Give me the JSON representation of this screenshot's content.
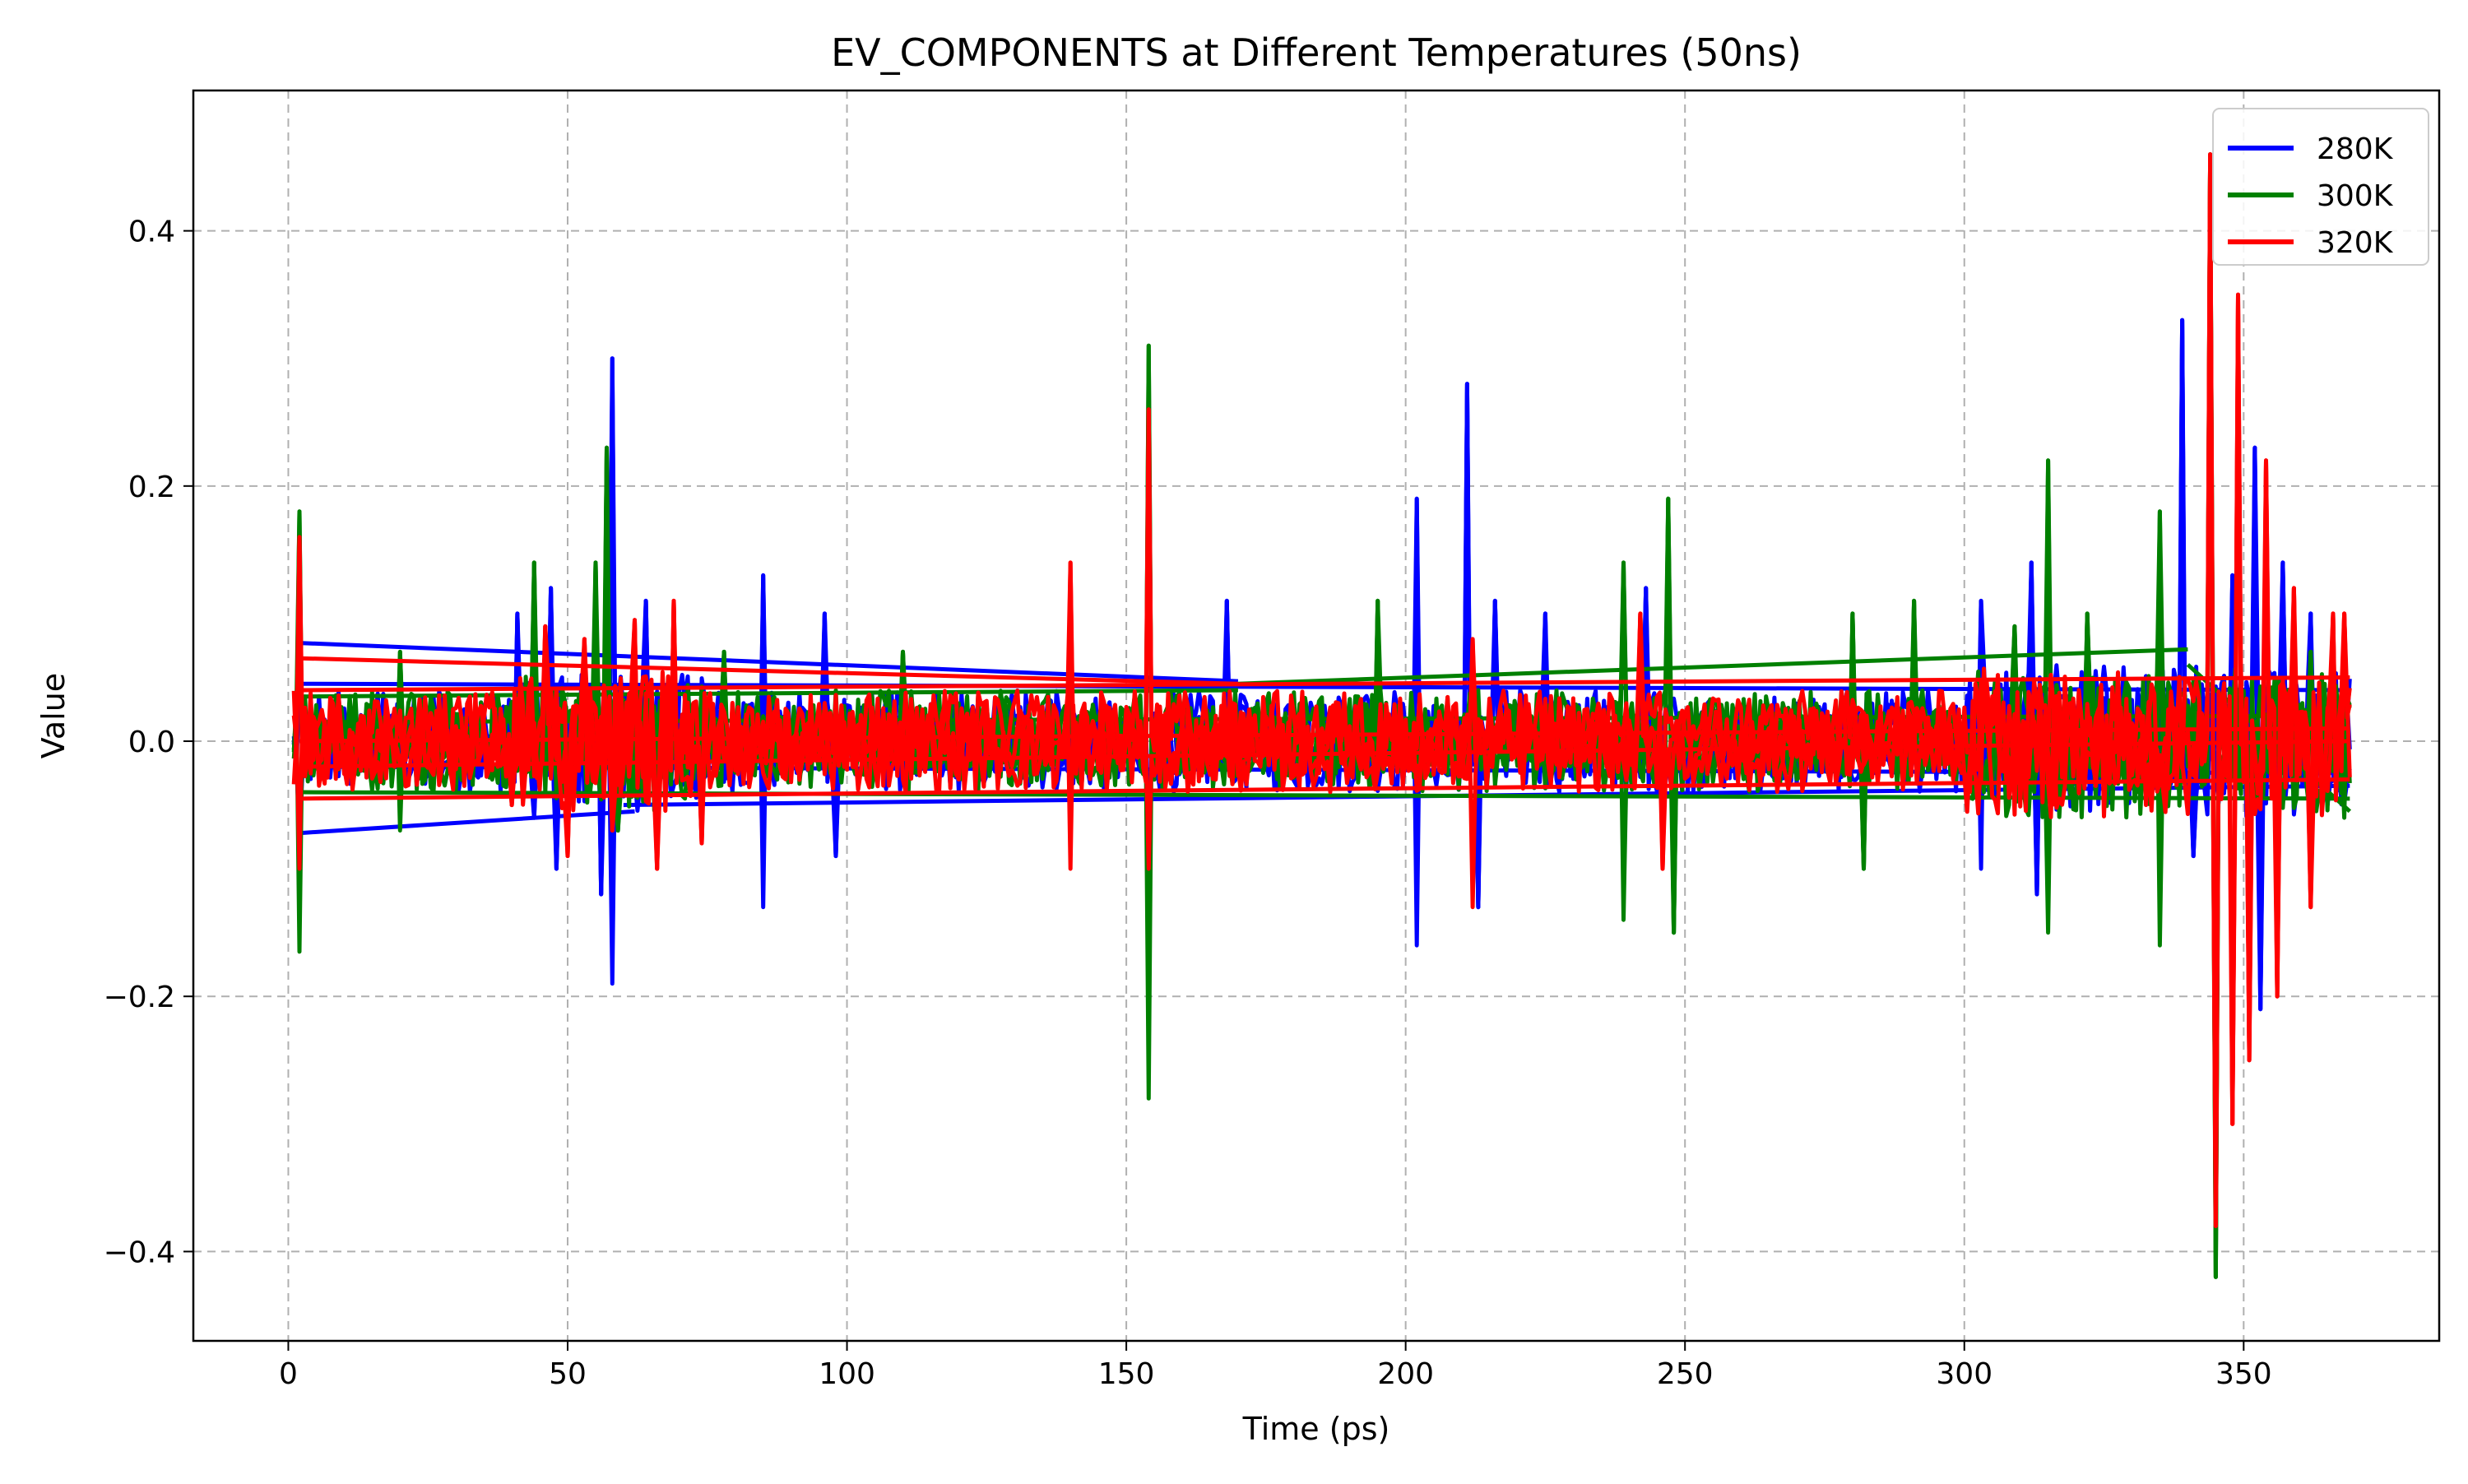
{
  "chart_data": {
    "type": "line",
    "title": "EV_COMPONENTS at Different Temperatures (50ns)",
    "xlabel": "Time (ps)",
    "ylabel": "Value",
    "xlim": [
      -17,
      385
    ],
    "ylim": [
      -0.47,
      0.51
    ],
    "xticks": [
      0,
      50,
      100,
      150,
      200,
      250,
      300,
      350
    ],
    "yticks": [
      -0.4,
      -0.2,
      0.0,
      0.2,
      0.4
    ],
    "ytick_labels": [
      "−0.4",
      "−0.2",
      "0.0",
      "0.2",
      "0.4"
    ],
    "grid": true,
    "legend_position": "top-right",
    "series": [
      {
        "name": "280K",
        "color": "#0000ff",
        "peaks": [
          [
            2,
            0.07
          ],
          [
            2,
            -0.07
          ],
          [
            41,
            0.1
          ],
          [
            44,
            -0.06
          ],
          [
            47,
            0.12
          ],
          [
            48,
            -0.1
          ],
          [
            56,
            -0.12
          ],
          [
            58,
            0.3
          ],
          [
            58,
            -0.19
          ],
          [
            64,
            0.11
          ],
          [
            85,
            0.13
          ],
          [
            85,
            -0.13
          ],
          [
            96,
            0.1
          ],
          [
            98,
            -0.09
          ],
          [
            154,
            -0.12
          ],
          [
            168,
            0.11
          ],
          [
            202,
            0.19
          ],
          [
            202,
            -0.16
          ],
          [
            211,
            0.28
          ],
          [
            213,
            -0.13
          ],
          [
            216,
            0.11
          ],
          [
            225,
            0.1
          ],
          [
            243,
            0.12
          ],
          [
            303,
            0.11
          ],
          [
            303,
            -0.1
          ],
          [
            312,
            0.14
          ],
          [
            313,
            -0.12
          ],
          [
            339,
            0.33
          ],
          [
            341,
            -0.09
          ],
          [
            348,
            0.13
          ],
          [
            352,
            0.23
          ],
          [
            353,
            -0.21
          ],
          [
            357,
            0.14
          ],
          [
            362,
            0.1
          ],
          [
            365,
            -0.05
          ]
        ],
        "bands": [
          [
            2,
            0.077,
            170,
            0.047
          ],
          [
            2,
            -0.072,
            62,
            -0.055
          ],
          [
            60,
            -0.05,
            369,
            -0.035
          ],
          [
            2,
            0.045,
            369,
            0.04
          ],
          [
            2,
            -0.02,
            369,
            -0.025
          ]
        ]
      },
      {
        "name": "300K",
        "color": "#008000",
        "peaks": [
          [
            2,
            0.18
          ],
          [
            2,
            -0.165
          ],
          [
            20,
            0.07
          ],
          [
            20,
            -0.07
          ],
          [
            44,
            0.14
          ],
          [
            55,
            0.14
          ],
          [
            57,
            0.23
          ],
          [
            59,
            -0.07
          ],
          [
            78,
            0.07
          ],
          [
            110,
            0.07
          ],
          [
            140,
            0.07
          ],
          [
            154,
            0.31
          ],
          [
            154,
            -0.28
          ],
          [
            195,
            0.11
          ],
          [
            239,
            0.14
          ],
          [
            239,
            -0.14
          ],
          [
            247,
            0.19
          ],
          [
            248,
            -0.15
          ],
          [
            280,
            0.1
          ],
          [
            282,
            -0.1
          ],
          [
            291,
            0.11
          ],
          [
            309,
            0.09
          ],
          [
            315,
            0.22
          ],
          [
            315,
            -0.15
          ],
          [
            322,
            0.1
          ],
          [
            335,
            0.18
          ],
          [
            335,
            -0.16
          ],
          [
            344,
            0.46
          ],
          [
            345,
            -0.42
          ],
          [
            351,
            -0.12
          ],
          [
            362,
            0.07
          ],
          [
            368,
            0.07
          ],
          [
            368,
            -0.06
          ]
        ],
        "bands": [
          [
            2,
            0.035,
            170,
            0.04
          ],
          [
            170,
            0.045,
            340,
            0.072
          ],
          [
            2,
            -0.04,
            369,
            -0.045
          ],
          [
            2,
            0.015,
            369,
            0.02
          ],
          [
            340,
            0.06,
            369,
            -0.055
          ]
        ]
      },
      {
        "name": "320K",
        "color": "#ff0000",
        "peaks": [
          [
            2,
            0.16
          ],
          [
            2,
            -0.1
          ],
          [
            40,
            -0.05
          ],
          [
            46,
            0.09
          ],
          [
            50,
            -0.09
          ],
          [
            53,
            0.08
          ],
          [
            58,
            -0.07
          ],
          [
            62,
            0.095
          ],
          [
            66,
            -0.1
          ],
          [
            69,
            0.11
          ],
          [
            74,
            -0.08
          ],
          [
            140,
            0.14
          ],
          [
            140,
            -0.1
          ],
          [
            154,
            0.26
          ],
          [
            154,
            -0.1
          ],
          [
            212,
            0.08
          ],
          [
            212,
            -0.13
          ],
          [
            242,
            0.1
          ],
          [
            246,
            -0.1
          ],
          [
            344,
            0.46
          ],
          [
            345,
            -0.38
          ],
          [
            348,
            -0.3
          ],
          [
            349,
            0.35
          ],
          [
            351,
            -0.25
          ],
          [
            354,
            0.22
          ],
          [
            356,
            -0.2
          ],
          [
            359,
            0.12
          ],
          [
            362,
            -0.13
          ],
          [
            366,
            0.1
          ],
          [
            368,
            0.1
          ]
        ],
        "bands": [
          [
            2,
            0.065,
            170,
            0.045
          ],
          [
            2,
            -0.045,
            369,
            -0.03
          ],
          [
            2,
            0.04,
            369,
            0.05
          ],
          [
            2,
            0.0,
            369,
            0.01
          ],
          [
            2,
            -0.02,
            369,
            0.0
          ]
        ]
      }
    ]
  }
}
